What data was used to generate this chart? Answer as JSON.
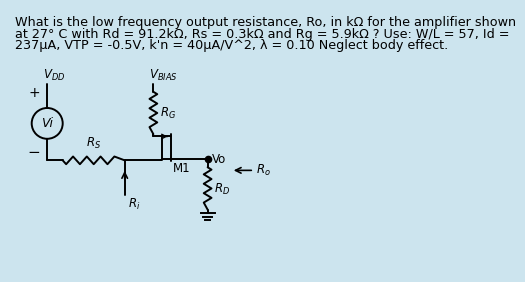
{
  "bg_color": "#cce4ee",
  "title_lines": [
    "What is the low frequency output resistance, Ro, in kΩ for the amplifier shown",
    "at 27° C with Rd = 91.2kΩ, Rs = 0.3kΩ and Rg = 5.9kΩ ? Use: W/L = 57, Id =",
    "237μA, VTP = -0.5V, k'n = 40μA/V^2, λ = 0.10 Neglect body effect."
  ],
  "title_fontsize": 9.2,
  "lw": 1.4
}
